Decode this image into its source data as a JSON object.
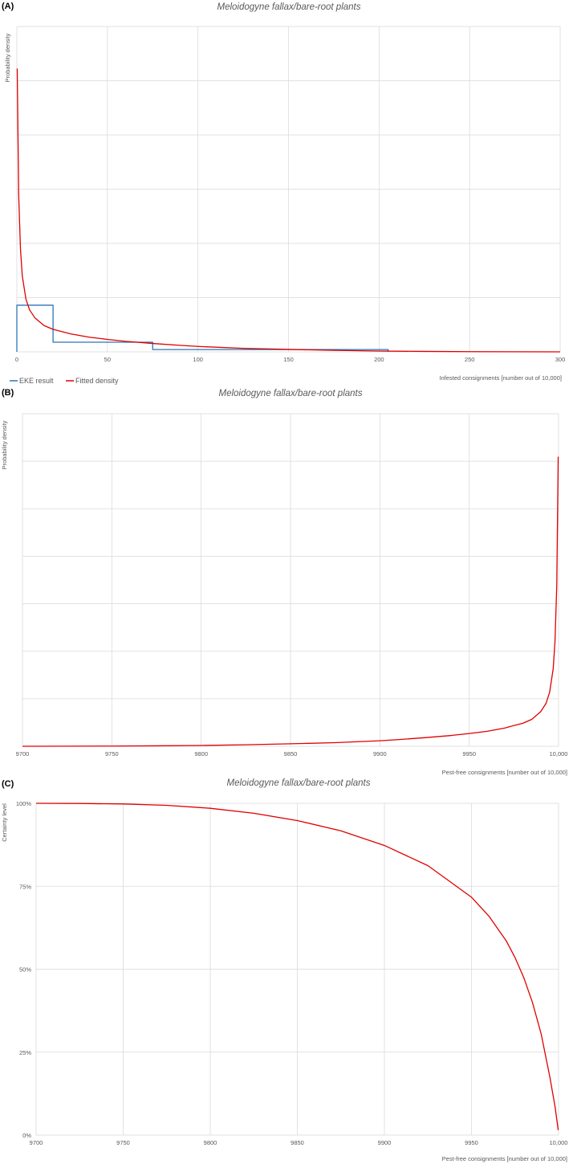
{
  "chart_data": [
    {
      "panel": "(A)",
      "type": "line",
      "title": "Meloidogyne fallax/bare-root plants",
      "xlabel": "Infested consignments [number out of 10,000]",
      "ylabel": "Probability density",
      "xlim": [
        0,
        300
      ],
      "x_ticks": [
        "0",
        "50",
        "100",
        "150",
        "200",
        "250",
        "300"
      ],
      "y_ticks_shown": false,
      "grid": true,
      "legend_position": "bottom-left",
      "series": [
        {
          "name": "EKE result",
          "color": "#2e75b6",
          "style": "step",
          "bins": [
            {
              "x0": 0,
              "x1": 20,
              "density": 0.0172
            },
            {
              "x0": 20,
              "x1": 75,
              "density": 0.00355
            },
            {
              "x0": 75,
              "x1": 205,
              "density": 0.00085
            }
          ]
        },
        {
          "name": "Fitted density",
          "color": "#e00000",
          "style": "line",
          "x": [
            0.2,
            1,
            2,
            3,
            5,
            7,
            10,
            15,
            20,
            30,
            40,
            50,
            60,
            75,
            90,
            100,
            125,
            150,
            175,
            200,
            225,
            250,
            275,
            300
          ],
          "y": [
            0.1045,
            0.058,
            0.038,
            0.028,
            0.0195,
            0.0155,
            0.0125,
            0.0097,
            0.0083,
            0.0066,
            0.0054,
            0.0046,
            0.0039,
            0.0031,
            0.0024,
            0.002,
            0.0013,
            0.0009,
            0.00055,
            0.0003,
            0.00016,
            8e-05,
            3e-05,
            1e-05
          ]
        }
      ],
      "ylim": [
        0,
        0.12
      ]
    },
    {
      "panel": "(B)",
      "type": "line",
      "title": "Meloidogyne fallax/bare-root plants",
      "xlabel": "Pest-free consignments [number out of 10,000]",
      "ylabel": "Probability density",
      "xlim": [
        9700,
        10000
      ],
      "x_ticks": [
        "9700",
        "9750",
        "9800",
        "9850",
        "9900",
        "9950",
        "10,000"
      ],
      "y_ticks_shown": false,
      "grid": true,
      "series": [
        {
          "color": "#e00000",
          "x": [
            9700,
            9725,
            9750,
            9775,
            9800,
            9825,
            9850,
            9875,
            9900,
            9910,
            9925,
            9940,
            9950,
            9960,
            9970,
            9975,
            9980,
            9985,
            9990,
            9993,
            9995,
            9997,
            9998,
            9999,
            9999.8
          ],
          "y": [
            1e-05,
            3e-05,
            8e-05,
            0.00016,
            0.0003,
            0.00055,
            0.0009,
            0.0013,
            0.002,
            0.0024,
            0.0031,
            0.0039,
            0.0046,
            0.0054,
            0.0066,
            0.0075,
            0.0083,
            0.0097,
            0.0125,
            0.0155,
            0.0195,
            0.028,
            0.038,
            0.058,
            0.1045
          ]
        }
      ],
      "ylim": [
        0,
        0.12
      ]
    },
    {
      "panel": "(C)",
      "type": "line",
      "title": "Meloidogyne fallax/bare-root plants",
      "xlabel": "Pest-free consignments [number out of 10,000]",
      "ylabel": "Certainty level",
      "xlim": [
        9700,
        10000
      ],
      "ylim": [
        0,
        1
      ],
      "x_ticks": [
        "9700",
        "9750",
        "9800",
        "9850",
        "9900",
        "9950",
        "10,000"
      ],
      "y_ticks": [
        "0%",
        "25%",
        "50%",
        "75%",
        "100%"
      ],
      "grid": true,
      "series": [
        {
          "color": "#e00000",
          "x": [
            9700,
            9725,
            9750,
            9775,
            9800,
            9825,
            9850,
            9875,
            9900,
            9925,
            9950,
            9960,
            9970,
            9975,
            9980,
            9985,
            9990,
            9995,
            9998,
            9999.8
          ],
          "y": [
            1.0,
            0.9995,
            0.998,
            0.994,
            0.985,
            0.97,
            0.948,
            0.917,
            0.873,
            0.812,
            0.717,
            0.66,
            0.585,
            0.535,
            0.475,
            0.4,
            0.305,
            0.175,
            0.085,
            0.015
          ]
        }
      ]
    }
  ],
  "legend": {
    "eke_label": "EKE result",
    "fitted_label": "Fitted density"
  }
}
